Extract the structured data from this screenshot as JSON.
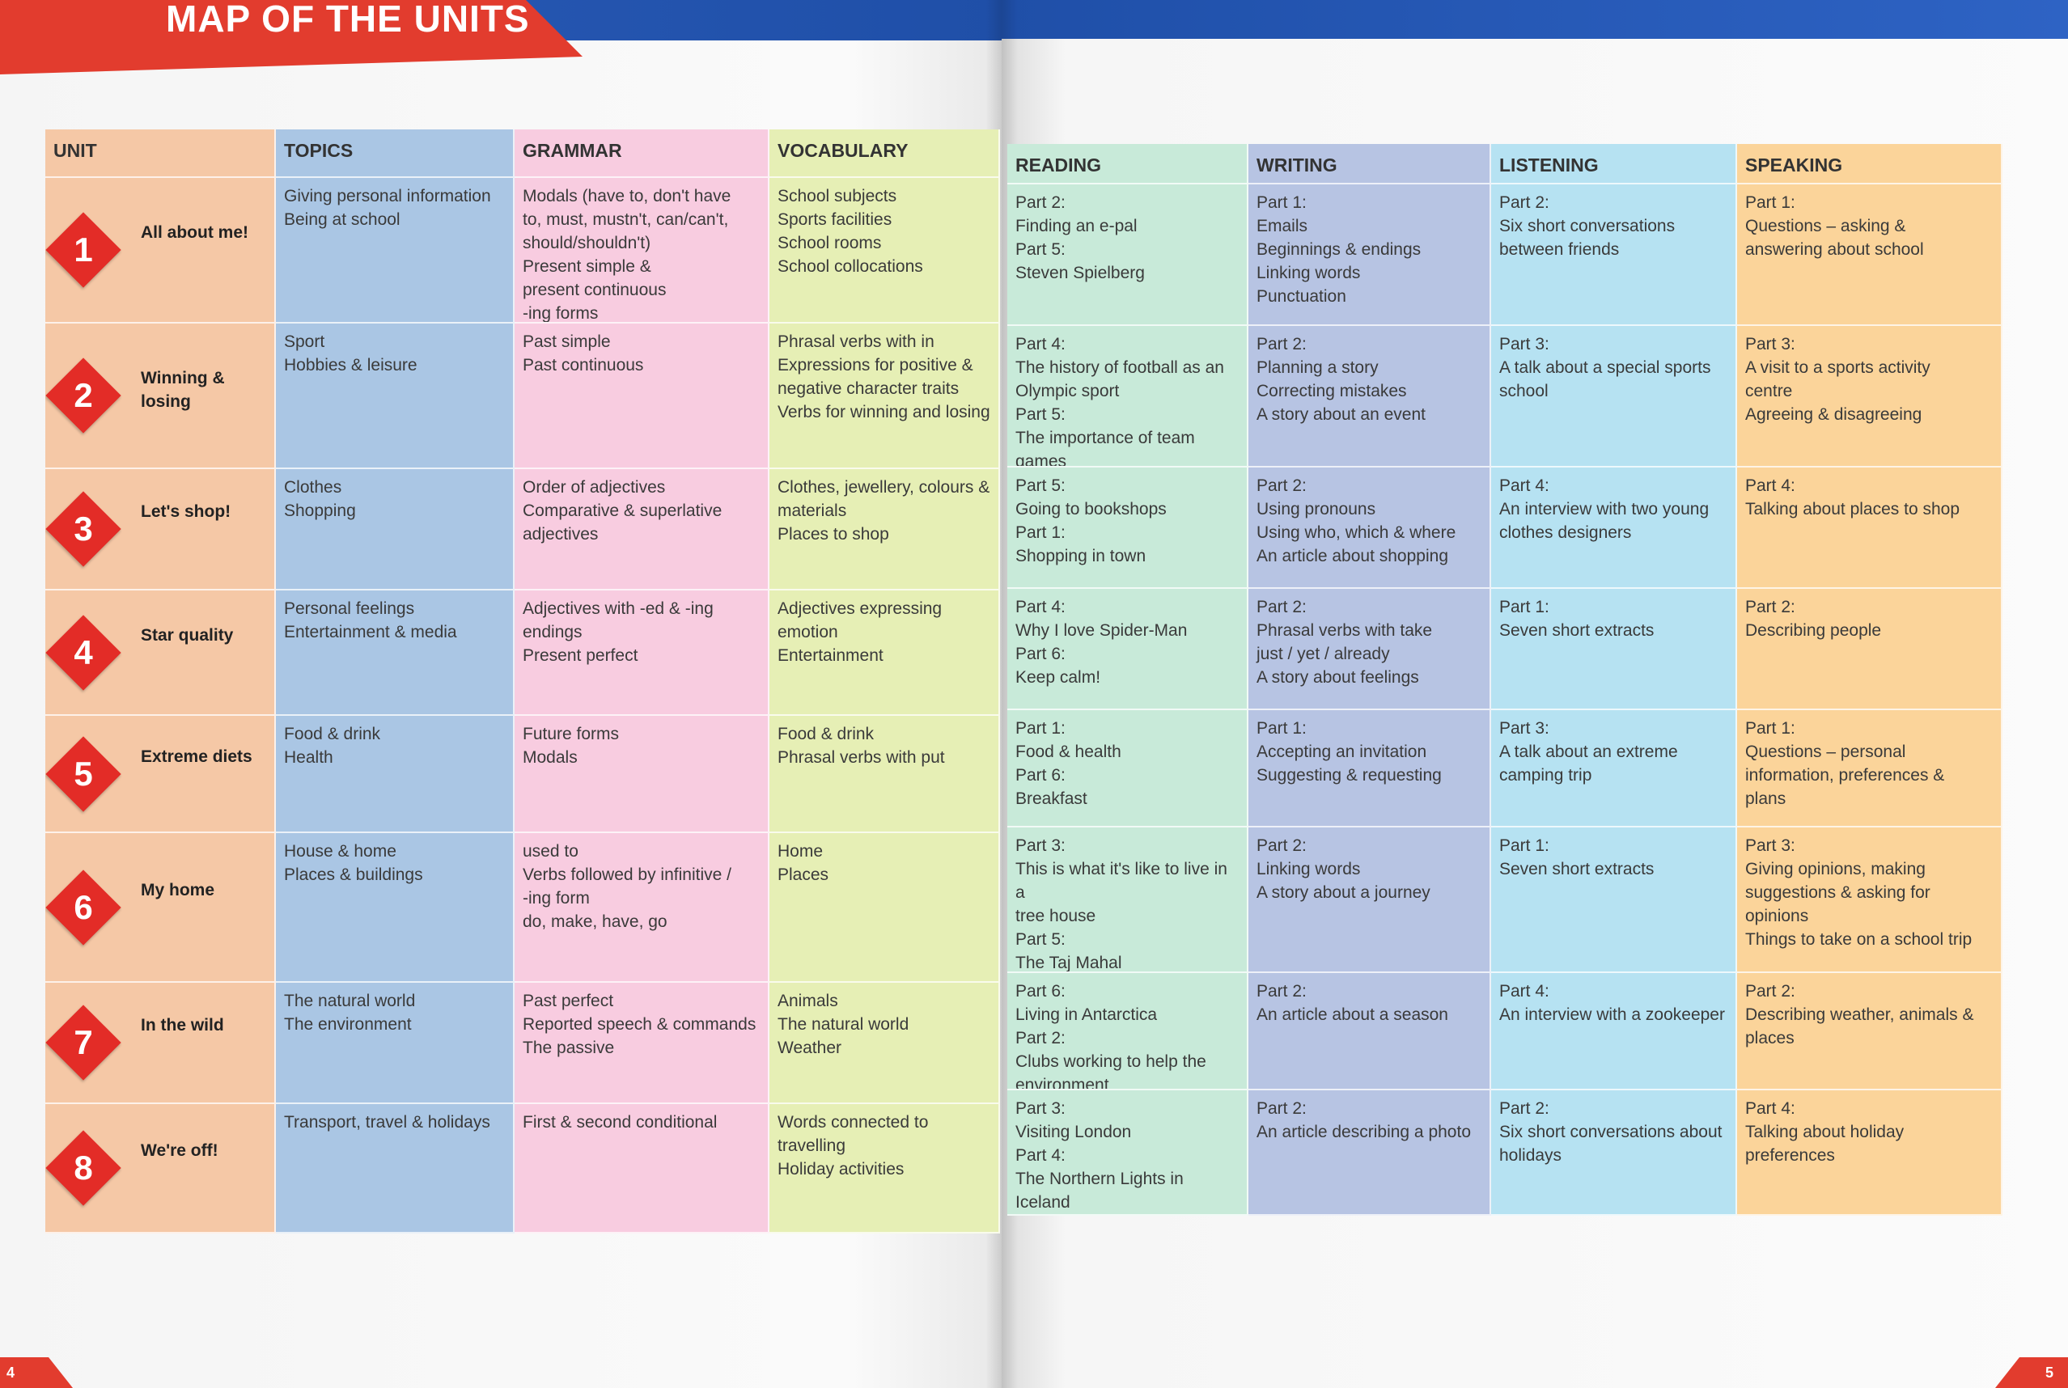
{
  "title": "MAP OF THE UNITS",
  "headers_left": {
    "unit": "UNIT",
    "topics": "TOPICS",
    "grammar": "GRAMMAR",
    "vocabulary": "VOCABULARY"
  },
  "headers_right": {
    "reading": "READING",
    "writing": "WRITING",
    "listening": "LISTENING",
    "speaking": "SPEAKING"
  },
  "colors": {
    "red": "#e23c2e",
    "blue": "#1f4fa8",
    "unit": "#f5c8a6",
    "topics": "#aac6e4",
    "grammar": "#f8cce0",
    "vocab": "#e6efb5",
    "reading": "#c8ead9",
    "writing": "#b7c4e3",
    "listening": "#b6e2f2",
    "speaking": "#fbd49a"
  },
  "units": [
    {
      "num": "1",
      "title": "All about me!",
      "topics": [
        "Giving personal information",
        "Being at school"
      ],
      "grammar": [
        "Modals (have to, don't have",
        "to, must, mustn't, can/can't,",
        "should/shouldn't)",
        "Present simple &",
        "present continuous",
        "-ing forms"
      ],
      "vocabulary": [
        "School subjects",
        "Sports facilities",
        "School rooms",
        "School collocations"
      ],
      "reading": [
        "Part 2:",
        "Finding an e-pal",
        "Part 5:",
        "Steven Spielberg"
      ],
      "writing": [
        "Part 1:",
        "Emails",
        "Beginnings & endings",
        "Linking words",
        "Punctuation"
      ],
      "listening": [
        "Part 2:",
        "Six short conversations",
        "between friends"
      ],
      "speaking": [
        "Part 1:",
        "Questions – asking &",
        "answering about school"
      ]
    },
    {
      "num": "2",
      "title": "Winning & losing",
      "topics": [
        "Sport",
        "Hobbies & leisure"
      ],
      "grammar": [
        "Past simple",
        "Past continuous"
      ],
      "vocabulary": [
        "Phrasal verbs with in",
        "Expressions for positive &",
        "negative character traits",
        "Verbs for winning and losing"
      ],
      "reading": [
        "Part 4:",
        "The history of football as an",
        "Olympic sport",
        "Part 5:",
        "The importance of team",
        "games"
      ],
      "writing": [
        "Part 2:",
        "Planning a story",
        "Correcting mistakes",
        "A story about an event"
      ],
      "listening": [
        "Part 3:",
        "A talk about a special sports",
        "school"
      ],
      "speaking": [
        "Part 3:",
        "A visit to a sports activity",
        "centre",
        "Agreeing & disagreeing"
      ]
    },
    {
      "num": "3",
      "title": "Let's shop!",
      "topics": [
        "Clothes",
        "Shopping"
      ],
      "grammar": [
        "Order of adjectives",
        "Comparative & superlative",
        "adjectives"
      ],
      "vocabulary": [
        "Clothes, jewellery, colours &",
        "materials",
        "Places to shop"
      ],
      "reading": [
        "Part 5:",
        "Going to bookshops",
        "Part 1:",
        "Shopping in town"
      ],
      "writing": [
        "Part 2:",
        "Using pronouns",
        "Using who, which & where",
        "An article about shopping"
      ],
      "listening": [
        "Part 4:",
        "An interview with two young",
        "clothes designers"
      ],
      "speaking": [
        "Part 4:",
        "Talking about places to shop"
      ]
    },
    {
      "num": "4",
      "title": "Star quality",
      "topics": [
        "Personal feelings",
        "Entertainment & media"
      ],
      "grammar": [
        "Adjectives with -ed & -ing",
        "endings",
        "Present perfect"
      ],
      "vocabulary": [
        "Adjectives expressing emotion",
        "Entertainment"
      ],
      "reading": [
        "Part 4:",
        "Why I love Spider-Man",
        "Part 6:",
        "Keep calm!"
      ],
      "writing": [
        "Part 2:",
        "Phrasal verbs with take",
        "just / yet / already",
        "A story about feelings"
      ],
      "listening": [
        "Part 1:",
        "Seven short extracts"
      ],
      "speaking": [
        "Part 2:",
        "Describing people"
      ]
    },
    {
      "num": "5",
      "title": "Extreme diets",
      "topics": [
        "Food & drink",
        "Health"
      ],
      "grammar": [
        "Future forms",
        "Modals"
      ],
      "vocabulary": [
        "Food & drink",
        "Phrasal verbs with put"
      ],
      "reading": [
        "Part 1:",
        "Food & health",
        "Part 6:",
        "Breakfast"
      ],
      "writing": [
        "Part 1:",
        "Accepting an invitation",
        "Suggesting & requesting"
      ],
      "listening": [
        "Part 3:",
        "A talk about an extreme",
        "camping trip"
      ],
      "speaking": [
        "Part 1:",
        "Questions – personal",
        "information, preferences &",
        "plans"
      ]
    },
    {
      "num": "6",
      "title": "My home",
      "topics": [
        "House & home",
        "Places & buildings"
      ],
      "grammar": [
        "used to",
        "Verbs followed by infinitive /",
        "-ing form",
        "do, make, have, go"
      ],
      "vocabulary": [
        "Home",
        "Places"
      ],
      "reading": [
        "Part 3:",
        "This is what it's like to live in a",
        "tree house",
        "Part 5:",
        "The Taj Mahal"
      ],
      "writing": [
        "Part 2:",
        "Linking words",
        "A story about a journey"
      ],
      "listening": [
        "Part 1:",
        "Seven short extracts"
      ],
      "speaking": [
        "Part 3:",
        "Giving opinions, making",
        "suggestions & asking for",
        "opinions",
        "Things to take on a school trip"
      ]
    },
    {
      "num": "7",
      "title": "In the wild",
      "topics": [
        "The natural world",
        "The environment"
      ],
      "grammar": [
        "Past perfect",
        "Reported speech & commands",
        "The passive"
      ],
      "vocabulary": [
        "Animals",
        "The natural world",
        "Weather"
      ],
      "reading": [
        "Part 6:",
        "Living in Antarctica",
        "Part 2:",
        "Clubs working to help the",
        "environment"
      ],
      "writing": [
        "Part 2:",
        "An article about a season"
      ],
      "listening": [
        "Part 4:",
        "An interview with a zookeeper"
      ],
      "speaking": [
        "Part 2:",
        "Describing weather, animals &",
        "places"
      ]
    },
    {
      "num": "8",
      "title": "We're off!",
      "topics": [
        "Transport, travel & holidays"
      ],
      "grammar": [
        "First & second conditional"
      ],
      "vocabulary": [
        "Words connected to travelling",
        "Holiday activities"
      ],
      "reading": [
        "Part 3:",
        "Visiting London",
        "Part 4:",
        "The Northern Lights in Iceland"
      ],
      "writing": [
        "Part 2:",
        "An article describing a photo"
      ],
      "listening": [
        "Part 2:",
        "Six short conversations about",
        "holidays"
      ],
      "speaking": [
        "Part 4:",
        "Talking about holiday",
        "preferences"
      ]
    }
  ],
  "page_left": "4",
  "page_right": "5"
}
